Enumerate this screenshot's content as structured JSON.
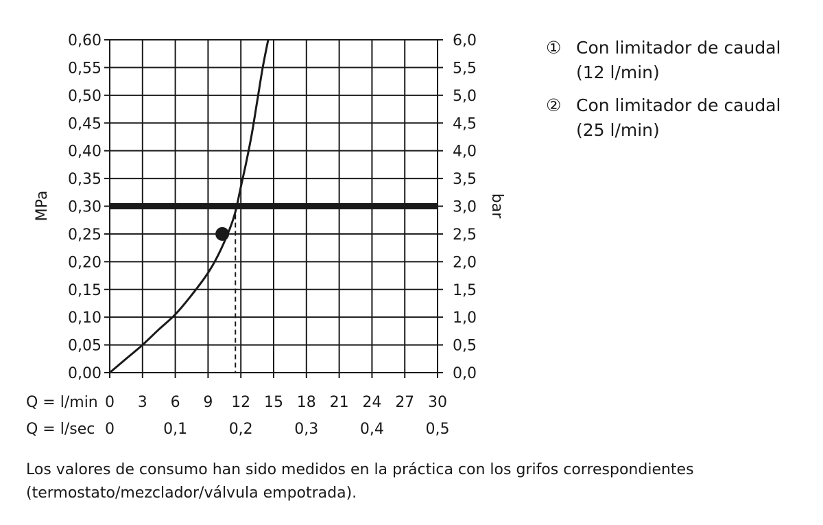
{
  "chart_data": {
    "type": "line",
    "y_left_label": "MPa",
    "y_right_label": "bar",
    "y_left_ticks": [
      "0,00",
      "0,05",
      "0,10",
      "0,15",
      "0,20",
      "0,25",
      "0,30",
      "0,35",
      "0,40",
      "0,45",
      "0,50",
      "0,55",
      "0,60"
    ],
    "y_right_ticks": [
      "0,0",
      "0,5",
      "1,0",
      "1,5",
      "2,0",
      "2,5",
      "3,0",
      "3,5",
      "4,0",
      "4,5",
      "5,0",
      "5,5",
      "6,0"
    ],
    "ylim": [
      0,
      0.6
    ],
    "xlim": [
      0,
      30
    ],
    "x_lmin_label": "Q = l/min",
    "x_lmin_ticks": [
      "0",
      "3",
      "6",
      "9",
      "12",
      "15",
      "18",
      "21",
      "24",
      "27",
      "30"
    ],
    "x_lsec_label": "Q = l/sec",
    "x_lsec_ticks": [
      "0",
      "0,1",
      "0,2",
      "0,3",
      "0,4",
      "0,5"
    ],
    "grid": true,
    "series": [
      {
        "x": [
          0,
          1.5,
          3,
          4.5,
          6,
          7.5,
          9,
          10,
          11,
          11.5,
          12,
          12.5,
          13,
          13.5,
          14,
          14.5
        ],
        "y": [
          0,
          0.025,
          0.05,
          0.078,
          0.105,
          0.14,
          0.18,
          0.215,
          0.26,
          0.29,
          0.335,
          0.38,
          0.43,
          0.49,
          0.55,
          0.6
        ]
      }
    ],
    "reference_line": {
      "y": 0.3
    },
    "marker_point": {
      "x": 10.3,
      "y": 0.25
    },
    "dashed_drop": {
      "x": 11.5,
      "y_top": 0.3,
      "y_bottom": 0
    }
  },
  "legend": [
    {
      "marker": "①",
      "text": "Con limitador de caudal (12 l/min)"
    },
    {
      "marker": "②",
      "text": "Con limitador de caudal (25 l/min)"
    }
  ],
  "footnote": "Los valores de consumo han sido medidos en la práctica con los grifos correspondientes (termostato/mezclador/válvula empotrada)."
}
